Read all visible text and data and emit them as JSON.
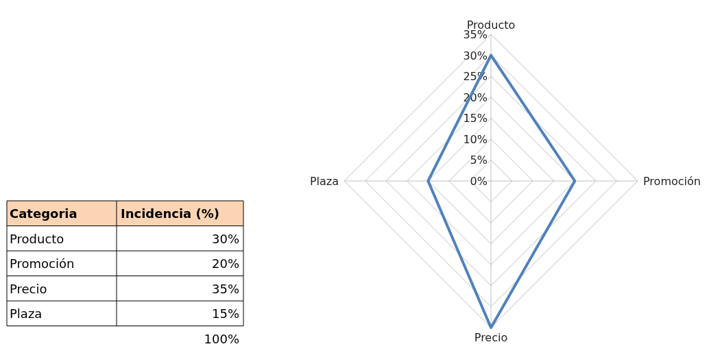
{
  "chart_data": {
    "type": "radar",
    "categories": [
      "Producto",
      "Promoción",
      "Precio",
      "Plaza"
    ],
    "series": [
      {
        "color": "#4f81bd",
        "values": [
          30,
          20,
          35,
          15
        ]
      }
    ],
    "value_labels": [
      "30%",
      "20%",
      "35%",
      "15%"
    ],
    "annotations": [
      "Categoria",
      "Incidencia (%)",
      "100%"
    ],
    "ylim": [
      0,
      35
    ],
    "yticks": [
      {
        "value": 0,
        "label": "0%"
      },
      {
        "value": 5,
        "label": "5%"
      },
      {
        "value": 10,
        "label": "10%"
      },
      {
        "value": 15,
        "label": "15%"
      },
      {
        "value": 20,
        "label": "20%"
      },
      {
        "value": 25,
        "label": "25%"
      },
      {
        "value": 30,
        "label": "30%"
      },
      {
        "value": 35,
        "label": "35%"
      }
    ],
    "grid": true
  }
}
